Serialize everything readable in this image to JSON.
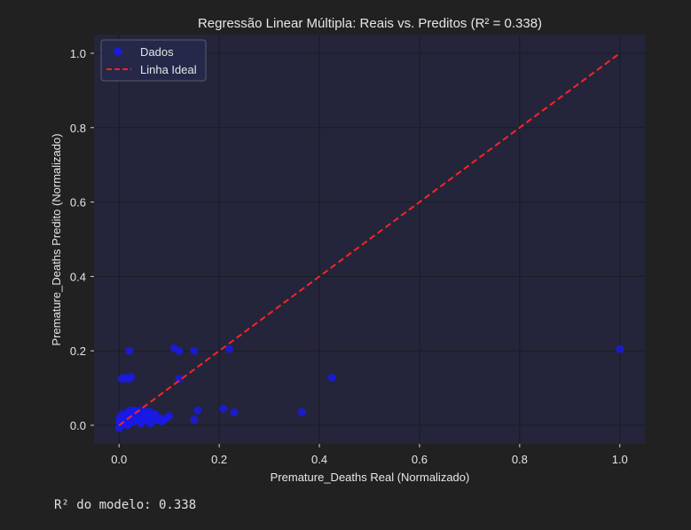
{
  "output_text": "R² do modelo: 0.338",
  "colors": {
    "background": "#212121",
    "plot_background": "#24253b",
    "grid": "#1b1c22",
    "text": "#e6e6e6",
    "points": "#1a1ae6",
    "ideal_line": "#ff2222",
    "legend_bg": "#26284a",
    "legend_border": "#5a5c70"
  },
  "chart_data": {
    "type": "scatter",
    "title": "Regressão Linear Múltipla: Reais vs. Preditos (R² = 0.338)",
    "xlabel": "Premature_Deaths Real (Normalizado)",
    "ylabel": "Premature_Deaths Predito (Normalizado)",
    "xlim": [
      -0.05,
      1.05
    ],
    "ylim": [
      -0.05,
      1.05
    ],
    "xticks": [
      0.0,
      0.2,
      0.4,
      0.6,
      0.8,
      1.0
    ],
    "yticks": [
      0.0,
      0.2,
      0.4,
      0.6,
      0.8,
      1.0
    ],
    "tick_labels_x": [
      "0.0",
      "0.2",
      "0.4",
      "0.6",
      "0.8",
      "1.0"
    ],
    "tick_labels_y": [
      "0.0",
      "0.2",
      "0.4",
      "0.6",
      "0.8",
      "1.0"
    ],
    "grid": true,
    "legend": {
      "position": "top-left",
      "entries": [
        "Dados",
        "Linha Ideal"
      ]
    },
    "series": [
      {
        "name": "Dados",
        "kind": "scatter",
        "points": [
          [
            0.0,
            -0.008
          ],
          [
            0.003,
            0.0
          ],
          [
            0.005,
            0.01
          ],
          [
            0.006,
            0.02
          ],
          [
            0.008,
            0.005
          ],
          [
            0.01,
            0.015
          ],
          [
            0.012,
            0.025
          ],
          [
            0.014,
            0.03
          ],
          [
            0.015,
            0.01
          ],
          [
            0.017,
            0.02
          ],
          [
            0.018,
            0.035
          ],
          [
            0.02,
            0.005
          ],
          [
            0.022,
            0.015
          ],
          [
            0.024,
            0.03
          ],
          [
            0.025,
            0.04
          ],
          [
            0.027,
            0.02
          ],
          [
            0.03,
            0.01
          ],
          [
            0.032,
            0.025
          ],
          [
            0.034,
            0.035
          ],
          [
            0.036,
            0.015
          ],
          [
            0.038,
            0.03
          ],
          [
            0.04,
            0.02
          ],
          [
            0.042,
            0.04
          ],
          [
            0.045,
            0.01
          ],
          [
            0.048,
            0.025
          ],
          [
            0.05,
            0.035
          ],
          [
            0.053,
            0.015
          ],
          [
            0.056,
            0.03
          ],
          [
            0.06,
            0.02
          ],
          [
            0.063,
            0.035
          ],
          [
            0.066,
            0.01
          ],
          [
            0.07,
            0.025
          ],
          [
            0.075,
            0.015
          ],
          [
            0.08,
            0.02
          ],
          [
            0.085,
            0.01
          ],
          [
            0.09,
            0.015
          ],
          [
            0.095,
            0.02
          ],
          [
            0.1,
            0.025
          ],
          [
            0.01,
            0.005
          ],
          [
            0.02,
            0.038
          ],
          [
            0.03,
            0.04
          ],
          [
            0.044,
            0.005
          ],
          [
            0.052,
            0.04
          ],
          [
            0.062,
            0.005
          ],
          [
            0.072,
            0.03
          ],
          [
            0.0,
            0.01
          ],
          [
            0.002,
            0.02
          ],
          [
            0.006,
            0.03
          ],
          [
            0.004,
            0.005
          ],
          [
            0.016,
            0.0
          ],
          [
            0.005,
            0.125
          ],
          [
            0.012,
            0.128
          ],
          [
            0.018,
            0.125
          ],
          [
            0.024,
            0.13
          ],
          [
            0.02,
            0.2
          ],
          [
            0.11,
            0.207
          ],
          [
            0.12,
            0.2
          ],
          [
            0.15,
            0.2
          ],
          [
            0.22,
            0.205
          ],
          [
            0.12,
            0.125
          ],
          [
            0.15,
            0.015
          ],
          [
            0.157,
            0.04
          ],
          [
            0.208,
            0.045
          ],
          [
            0.23,
            0.035
          ],
          [
            0.365,
            0.035
          ],
          [
            0.425,
            0.128
          ],
          [
            1.0,
            0.205
          ]
        ]
      },
      {
        "name": "Linha Ideal",
        "kind": "line",
        "points": [
          [
            0.0,
            0.0
          ],
          [
            1.0,
            1.0
          ]
        ]
      }
    ]
  }
}
